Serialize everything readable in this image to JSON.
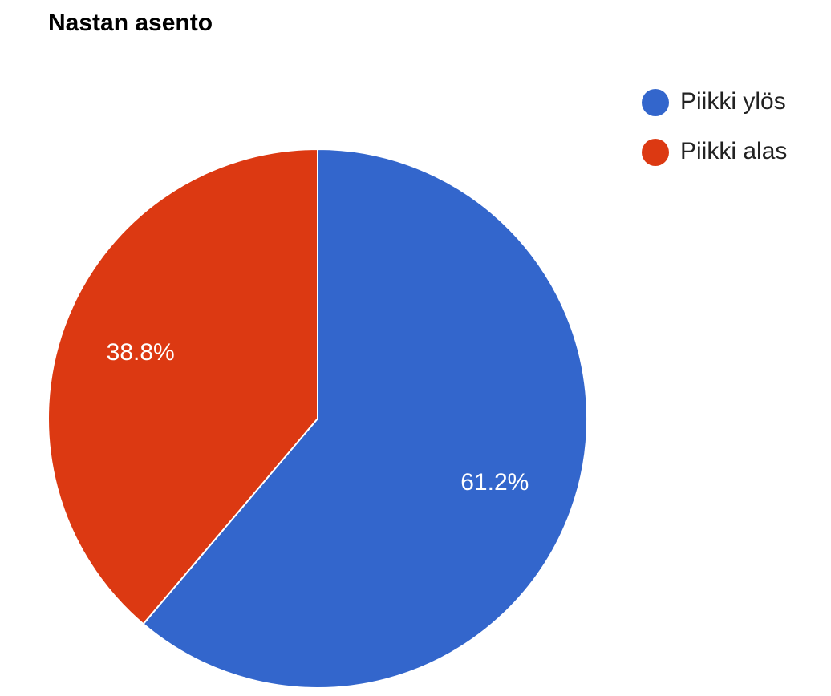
{
  "chart_data": {
    "type": "pie",
    "title": "Nastan asento",
    "categories": [
      "Piikki ylös",
      "Piikki alas"
    ],
    "values": [
      61.2,
      38.8
    ],
    "value_labels": [
      "61.2%",
      "38.8%"
    ],
    "colors": [
      "#3366cc",
      "#dc3912"
    ],
    "legend": "right"
  }
}
